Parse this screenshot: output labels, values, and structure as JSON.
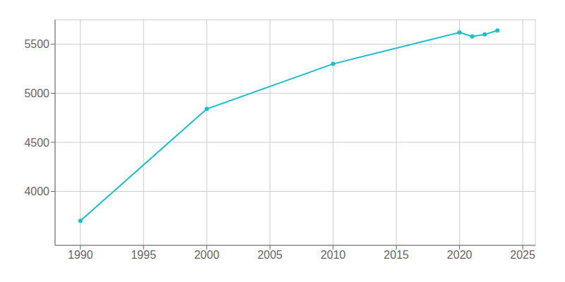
{
  "chart_data": {
    "type": "line",
    "x": [
      1990,
      2000,
      2010,
      2020,
      2021,
      2022,
      2023
    ],
    "values": [
      3700,
      4840,
      5300,
      5620,
      5580,
      5600,
      5640
    ],
    "color": "#17becf",
    "marker": "circle",
    "xlim": [
      1988,
      2026
    ],
    "ylim": [
      3450,
      5750
    ],
    "xticks": [
      1990,
      1995,
      2000,
      2005,
      2010,
      2015,
      2020,
      2025
    ],
    "yticks": [
      4000,
      4500,
      5000,
      5500
    ],
    "grid": true
  }
}
